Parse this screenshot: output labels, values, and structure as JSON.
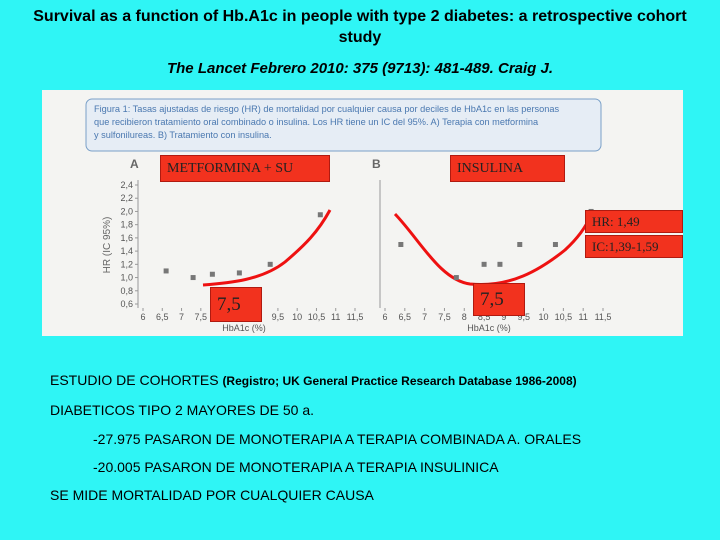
{
  "header": {
    "title": "Survival as a function of Hb.A1c in people with type 2 diabetes: a retrospective cohort study",
    "citation": "The Lancet  Febrero 2010: 375 (9713): 481-489.  Craig J."
  },
  "figure": {
    "caption": [
      "Figura 1: Tasas ajustadas de riesgo (HR) de mortalidad por cualquier causa por deciles de HbA1c en las personas",
      "que recibieron tratamiento oral combinado o insulina. Los HR tiene un IC del 95%.  A) Terapia con metformina",
      "y sulfonilureas. B) Tratamiento con insulina."
    ]
  },
  "chart_data": [
    {
      "type": "scatter",
      "title": "A",
      "ylabel": "HR (IC 95%)",
      "xlabel": "HbA1c (%)",
      "color": "#777777",
      "x": [
        6.6,
        7.3,
        7.8,
        8.5,
        9.3,
        10.6
      ],
      "values": [
        1.1,
        1.0,
        1.05,
        1.07,
        1.2,
        1.95
      ],
      "xlim": [
        6,
        11.5
      ],
      "ylim": [
        0.6,
        2.4
      ],
      "xticks": [
        6,
        {
          "value": 6.5,
          "label": "6,5"
        },
        7,
        {
          "value": 7.5,
          "label": "7,5"
        },
        8,
        {
          "value": 8.5,
          "label": "8,5"
        },
        9,
        {
          "value": 9.5,
          "label": "9,5"
        },
        10,
        {
          "value": 10.5,
          "label": "10,5"
        },
        11,
        {
          "value": 11.5,
          "label": "11,5"
        }
      ],
      "yticks": [
        {
          "value": 0.6,
          "label": "0,6"
        },
        {
          "value": 0.8,
          "label": "0,8"
        },
        {
          "value": 1.0,
          "label": "1,0"
        },
        {
          "value": 1.2,
          "label": "1,2"
        },
        {
          "value": 1.4,
          "label": "1,4"
        },
        {
          "value": 1.6,
          "label": "1,6"
        },
        {
          "value": 1.8,
          "label": "1,8"
        },
        {
          "value": 2.0,
          "label": "2,0"
        },
        {
          "value": 2.2,
          "label": "2,2"
        },
        {
          "value": 2.4,
          "label": "2,4"
        }
      ]
    },
    {
      "type": "scatter",
      "title": "B",
      "xlabel": "HbA1c (%)",
      "color": "#777777",
      "x": [
        6.4,
        7.8,
        8.5,
        8.9,
        9.4,
        10.3,
        11.2
      ],
      "values": [
        1.5,
        1.0,
        1.2,
        1.2,
        1.5,
        1.5,
        2.0
      ],
      "xlim": [
        6,
        11.5
      ],
      "ylim": [
        0.6,
        2.4
      ],
      "xticks": [
        6,
        {
          "value": 6.5,
          "label": "6,5"
        },
        7,
        {
          "value": 7.5,
          "label": "7,5"
        },
        8,
        {
          "value": 8.5,
          "label": "8,5"
        },
        9,
        {
          "value": 9.5,
          "label": "9,5"
        },
        10,
        {
          "value": 10.5,
          "label": "10,5"
        },
        11,
        {
          "value": 11.5,
          "label": "11,5"
        }
      ]
    }
  ],
  "annotations": {
    "panel_a": "METFORMINA + SU",
    "panel_b": "INSULINA",
    "hr": "HR: 1,49",
    "ic": "IC:1,39-1,59",
    "threshold_a": "7,5",
    "threshold_b": "7,5"
  },
  "body": {
    "cohort": "ESTUDIO DE COHORTES",
    "registry": "(Registro; UK General Practice Research Database 1986-2008)",
    "population": "DIABETICOS TIPO 2 MAYORES DE 50 a.",
    "combined": "-27.975 PASARON DE MONOTERAPIA A TERAPIA COMBINADA A. ORALES",
    "insulin": "-20.005 PASARON DE MONOTERAPIA A TERAPIA INSULINICA",
    "outcome": "SE MIDE MORTALIDAD POR CUALQUIER CAUSA"
  }
}
